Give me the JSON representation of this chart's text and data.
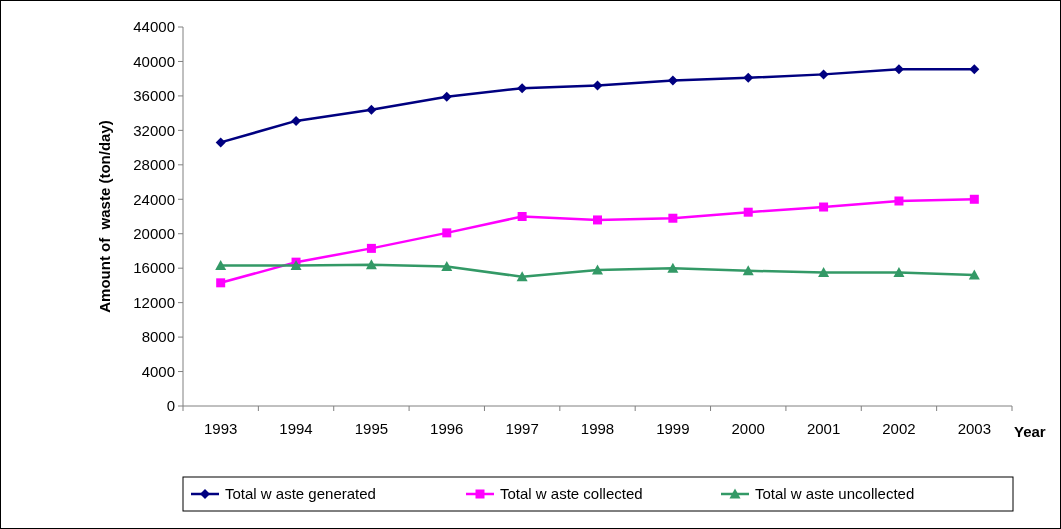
{
  "chart_data": {
    "type": "line",
    "xlabel": "Year",
    "ylabel": "Amount of  waste (ton/day)",
    "categories": [
      "1993",
      "1994",
      "1995",
      "1996",
      "1997",
      "1998",
      "1999",
      "2000",
      "2001",
      "2002",
      "2003"
    ],
    "ylim": [
      0,
      44000
    ],
    "yticks": [
      0,
      4000,
      8000,
      12000,
      16000,
      20000,
      24000,
      28000,
      32000,
      36000,
      40000,
      44000
    ],
    "grid": false,
    "legend": "bottom",
    "series": [
      {
        "name": "Total w aste generated",
        "color": "#000080",
        "marker": "diamond",
        "values": [
          30600,
          33100,
          34400,
          35900,
          36900,
          37200,
          37800,
          38100,
          38500,
          39100,
          39100
        ]
      },
      {
        "name": "Total w aste collected",
        "color": "#ff00ff",
        "marker": "square",
        "values": [
          14300,
          16700,
          18300,
          20100,
          22000,
          21600,
          21800,
          22500,
          23100,
          23800,
          24000
        ]
      },
      {
        "name": "Total w aste uncollected",
        "color": "#339966",
        "marker": "triangle",
        "values": [
          16300,
          16300,
          16400,
          16200,
          15000,
          15800,
          16000,
          15700,
          15500,
          15500,
          15200
        ]
      }
    ]
  }
}
